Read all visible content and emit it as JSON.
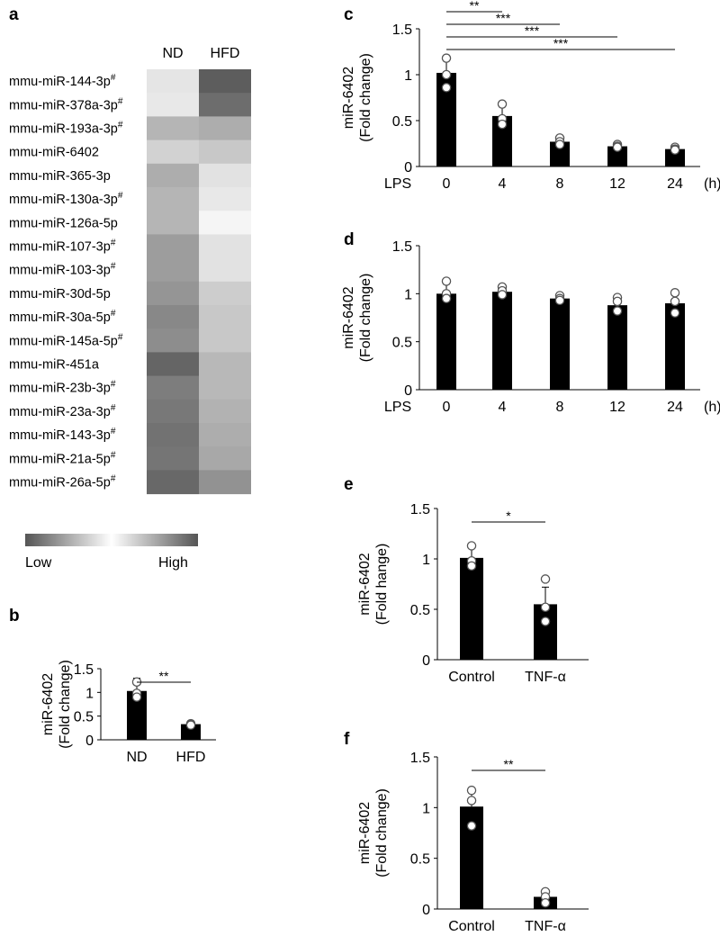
{
  "chart_data": [
    {
      "panel": "a",
      "type": "heatmap",
      "columns": [
        "ND",
        "HFD"
      ],
      "rows": [
        {
          "label": "mmu-miR-144-3p",
          "mark": "#",
          "values": [
            0.1,
            0.95
          ]
        },
        {
          "label": "mmu-miR-378a-3p",
          "mark": "#",
          "values": [
            0.08,
            0.85
          ]
        },
        {
          "label": "mmu-miR-193a-3p",
          "mark": "#",
          "values": [
            0.4,
            0.45
          ]
        },
        {
          "label": "mmu-miR-6402",
          "mark": "",
          "values": [
            0.22,
            0.28
          ]
        },
        {
          "label": "mmu-miR-365-3p",
          "mark": "",
          "values": [
            0.45,
            0.12
          ]
        },
        {
          "label": "mmu-miR-130a-3p",
          "mark": "#",
          "values": [
            0.4,
            0.08
          ]
        },
        {
          "label": "mmu-miR-126a-5p",
          "mark": "",
          "values": [
            0.4,
            0.0
          ]
        },
        {
          "label": "mmu-miR-107-3p",
          "mark": "#",
          "values": [
            0.55,
            0.12
          ]
        },
        {
          "label": "mmu-miR-103-3p",
          "mark": "#",
          "values": [
            0.55,
            0.12
          ]
        },
        {
          "label": "mmu-miR-30d-5p",
          "mark": "",
          "values": [
            0.6,
            0.25
          ]
        },
        {
          "label": "mmu-miR-30a-5p",
          "mark": "#",
          "values": [
            0.68,
            0.28
          ]
        },
        {
          "label": "mmu-miR-145a-5p",
          "mark": "#",
          "values": [
            0.65,
            0.28
          ]
        },
        {
          "label": "mmu-miR-451a",
          "mark": "",
          "values": [
            0.9,
            0.38
          ]
        },
        {
          "label": "mmu-miR-23b-3p",
          "mark": "#",
          "values": [
            0.75,
            0.38
          ]
        },
        {
          "label": "mmu-miR-23a-3p",
          "mark": "#",
          "values": [
            0.78,
            0.42
          ]
        },
        {
          "label": "mmu-miR-143-3p",
          "mark": "#",
          "values": [
            0.82,
            0.45
          ]
        },
        {
          "label": "mmu-miR-21a-5p",
          "mark": "#",
          "values": [
            0.8,
            0.48
          ]
        },
        {
          "label": "mmu-miR-26a-5p",
          "mark": "#",
          "values": [
            0.88,
            0.62
          ]
        }
      ],
      "scale": {
        "low_label": "Low",
        "high_label": "High"
      }
    },
    {
      "panel": "b",
      "type": "bar",
      "ylabel": [
        "miR-6402",
        "(Fold change)"
      ],
      "xprefix": "",
      "xunit": "",
      "categories": [
        "ND",
        "HFD"
      ],
      "values": [
        1.03,
        0.33
      ],
      "errors": [
        0.27,
        0.02
      ],
      "points": [
        [
          1.22,
          0.98,
          0.9
        ],
        [
          0.34,
          0.32,
          0.31
        ]
      ],
      "ylim": [
        0,
        1.5
      ],
      "yticks": [
        "0",
        "0.5",
        "1",
        "1.5"
      ],
      "significance": [
        {
          "from": 0,
          "to": 1,
          "label": "**"
        }
      ]
    },
    {
      "panel": "c",
      "type": "bar",
      "ylabel": [
        "miR-6402",
        "(Fold change)"
      ],
      "xprefix": "LPS",
      "xunit": "(h)",
      "categories": [
        "0",
        "4",
        "8",
        "12",
        "24"
      ],
      "values": [
        1.02,
        0.55,
        0.27,
        0.22,
        0.19
      ],
      "errors": [
        0.16,
        0.12,
        0.04,
        0.02,
        0.02
      ],
      "points": [
        [
          1.18,
          1.0,
          0.86
        ],
        [
          0.68,
          0.52,
          0.46
        ],
        [
          0.31,
          0.27,
          0.24
        ],
        [
          0.24,
          0.22,
          0.21
        ],
        [
          0.21,
          0.19,
          0.18
        ]
      ],
      "ylim": [
        0,
        1.5
      ],
      "yticks": [
        "0",
        "0.5",
        "1",
        "1.5"
      ],
      "significance": [
        {
          "from": 0,
          "to": 1,
          "label": "**"
        },
        {
          "from": 0,
          "to": 2,
          "label": "***"
        },
        {
          "from": 0,
          "to": 3,
          "label": "***"
        },
        {
          "from": 0,
          "to": 4,
          "label": "***"
        }
      ]
    },
    {
      "panel": "d",
      "type": "bar",
      "ylabel": [
        "miR-6402",
        "(Fold change)"
      ],
      "xprefix": "LPS",
      "xunit": "(h)",
      "categories": [
        "0",
        "4",
        "8",
        "12",
        "24"
      ],
      "values": [
        1.0,
        1.02,
        0.95,
        0.88,
        0.9
      ],
      "errors": [
        0.1,
        0.04,
        0.04,
        0.07,
        0.08
      ],
      "points": [
        [
          1.13,
          1.0,
          0.95
        ],
        [
          1.07,
          1.03,
          0.99
        ],
        [
          0.98,
          0.95,
          0.93
        ],
        [
          0.96,
          0.92,
          0.82
        ],
        [
          1.01,
          0.92,
          0.8
        ]
      ],
      "ylim": [
        0,
        1.5
      ],
      "yticks": [
        "0",
        "0.5",
        "1",
        "1.5"
      ],
      "significance": []
    },
    {
      "panel": "e",
      "type": "bar",
      "ylabel": [
        "miR-6402",
        "(Fold hange)"
      ],
      "xprefix": "",
      "xunit": "",
      "categories": [
        "Control",
        "TNF-α"
      ],
      "values": [
        1.01,
        0.55
      ],
      "errors": [
        0.12,
        0.17
      ],
      "points": [
        [
          1.13,
          0.98,
          0.93
        ],
        [
          0.8,
          0.52,
          0.38
        ]
      ],
      "ylim": [
        0,
        1.5
      ],
      "yticks": [
        "0",
        "0.5",
        "1",
        "1.5"
      ],
      "significance": [
        {
          "from": 0,
          "to": 1,
          "label": "*"
        }
      ]
    },
    {
      "panel": "f",
      "type": "bar",
      "ylabel": [
        "miR-6402",
        "(Fold change)"
      ],
      "xprefix": "",
      "xunit": "",
      "categories": [
        "Control",
        "TNF-α"
      ],
      "values": [
        1.01,
        0.12
      ],
      "errors": [
        0.15,
        0.05
      ],
      "points": [
        [
          1.17,
          1.07,
          0.82
        ],
        [
          0.17,
          0.12,
          0.06
        ]
      ],
      "ylim": [
        0,
        1.5
      ],
      "yticks": [
        "0",
        "0.5",
        "1",
        "1.5"
      ],
      "significance": [
        {
          "from": 0,
          "to": 1,
          "label": "**"
        }
      ]
    }
  ]
}
